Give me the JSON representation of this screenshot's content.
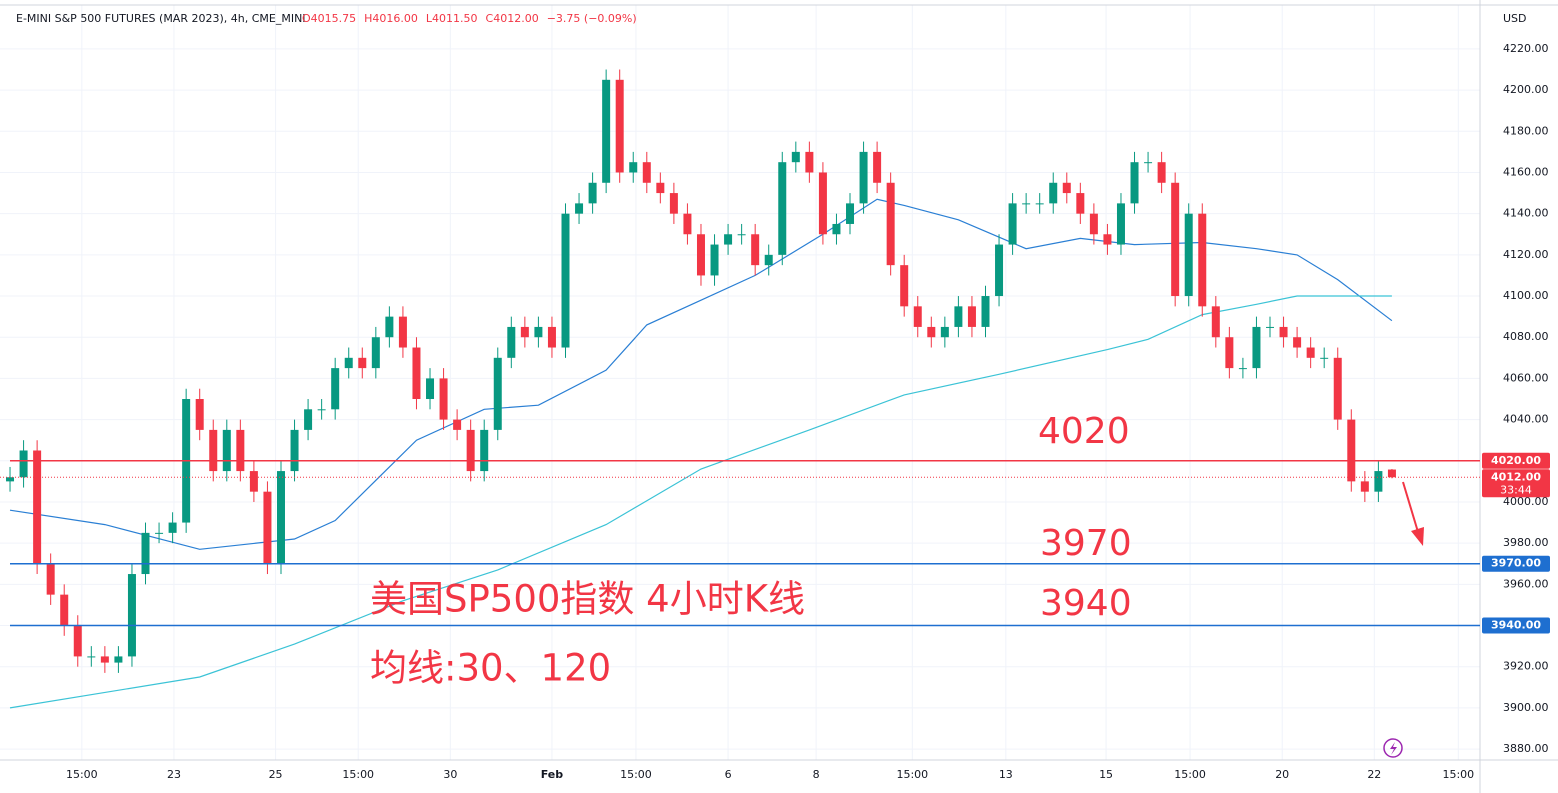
{
  "chart_data": {
    "type": "candlestick",
    "title": "E-MINI S&P 500 FUTURES (MAR 2023), 4h, CME_MINI",
    "ohlc_header": [
      "O4015.75",
      "H4016.00",
      "L4011.50",
      "C4012.00",
      "−3.75 (−0.09%)"
    ],
    "currency": "USD",
    "annotations": [
      "4020",
      "3970",
      "3940",
      "美国SP500指数 4小时K线",
      "均线:30、120"
    ],
    "countdown": "33:44",
    "up_color": "#089981",
    "down_color": "#f23645",
    "open": [
      4010,
      4012,
      4025,
      3970,
      3955,
      3940,
      3925,
      3925,
      3922,
      3925,
      3965,
      3985,
      3985,
      3990,
      4050,
      4035,
      4015,
      4035,
      4015,
      4005,
      3970,
      4015,
      4035,
      4045,
      4045,
      4065,
      4070,
      4065,
      4080,
      4090,
      4075,
      4050,
      4060,
      4040,
      4035,
      4015,
      4035,
      4070,
      4085,
      4080,
      4085,
      4075,
      4140,
      4145,
      4155,
      4205,
      4160,
      4165,
      4155,
      4150,
      4140,
      4130,
      4110,
      4125,
      4130,
      4130,
      4115,
      4120,
      4165,
      4170,
      4160,
      4130,
      4135,
      4145,
      4170,
      4155,
      4115,
      4095,
      4085,
      4080,
      4085,
      4095,
      4085,
      4100,
      4125,
      4145,
      4145,
      4145,
      4155,
      4150,
      4140,
      4130,
      4125,
      4145,
      4165,
      4165,
      4155,
      4100,
      4140,
      4095,
      4080,
      4065,
      4065,
      4085,
      4085,
      4080,
      4075,
      4070,
      4070,
      4040,
      4010,
      4005,
      4015.75
    ],
    "high": [
      4017,
      4030,
      4030,
      3975,
      3960,
      3945,
      3930,
      3930,
      3930,
      3970,
      3990,
      3990,
      3995,
      4055,
      4055,
      4040,
      4040,
      4040,
      4020,
      4010,
      4020,
      4040,
      4050,
      4050,
      4070,
      4075,
      4075,
      4085,
      4095,
      4095,
      4080,
      4065,
      4065,
      4045,
      4040,
      4040,
      4075,
      4090,
      4090,
      4090,
      4090,
      4145,
      4150,
      4160,
      4210,
      4210,
      4170,
      4170,
      4160,
      4155,
      4145,
      4135,
      4130,
      4135,
      4135,
      4135,
      4125,
      4170,
      4175,
      4175,
      4165,
      4140,
      4150,
      4175,
      4175,
      4160,
      4120,
      4100,
      4090,
      4090,
      4100,
      4100,
      4105,
      4130,
      4150,
      4150,
      4150,
      4160,
      4160,
      4155,
      4145,
      4135,
      4150,
      4170,
      4170,
      4170,
      4160,
      4145,
      4145,
      4100,
      4085,
      4070,
      4090,
      4090,
      4090,
      4085,
      4080,
      4075,
      4075,
      4045,
      4015,
      4020,
      4016
    ],
    "low": [
      4005,
      4007,
      3965,
      3950,
      3935,
      3920,
      3920,
      3917,
      3917,
      3920,
      3960,
      3980,
      3980,
      3985,
      4030,
      4010,
      4010,
      4010,
      4000,
      3965,
      3965,
      4010,
      4030,
      4040,
      4040,
      4060,
      4060,
      4060,
      4075,
      4070,
      4045,
      4045,
      4035,
      4030,
      4010,
      4010,
      4030,
      4065,
      4075,
      4075,
      4070,
      4070,
      4135,
      4140,
      4150,
      4155,
      4155,
      4150,
      4145,
      4135,
      4125,
      4105,
      4105,
      4120,
      4125,
      4110,
      4110,
      4115,
      4160,
      4155,
      4125,
      4125,
      4130,
      4140,
      4150,
      4110,
      4090,
      4080,
      4075,
      4075,
      4080,
      4080,
      4080,
      4095,
      4120,
      4140,
      4140,
      4140,
      4145,
      4135,
      4125,
      4120,
      4120,
      4140,
      4160,
      4150,
      4095,
      4095,
      4090,
      4075,
      4060,
      4060,
      4060,
      4080,
      4075,
      4070,
      4065,
      4065,
      4035,
      4005,
      4000,
      4000,
      4011.5
    ],
    "close": [
      4012,
      4025,
      3970,
      3955,
      3940,
      3925,
      3925,
      3922,
      3925,
      3965,
      3985,
      3985,
      3990,
      4050,
      4035,
      4015,
      4035,
      4015,
      4005,
      3970,
      4015,
      4035,
      4045,
      4045,
      4065,
      4070,
      4065,
      4080,
      4090,
      4075,
      4050,
      4060,
      4040,
      4035,
      4015,
      4035,
      4070,
      4085,
      4080,
      4085,
      4075,
      4140,
      4145,
      4155,
      4205,
      4160,
      4165,
      4155,
      4150,
      4140,
      4130,
      4110,
      4125,
      4130,
      4130,
      4115,
      4120,
      4165,
      4170,
      4160,
      4130,
      4135,
      4145,
      4170,
      4155,
      4115,
      4095,
      4085,
      4080,
      4085,
      4095,
      4085,
      4100,
      4125,
      4145,
      4145,
      4145,
      4155,
      4150,
      4140,
      4130,
      4125,
      4145,
      4165,
      4165,
      4155,
      4100,
      4140,
      4095,
      4080,
      4065,
      4065,
      4085,
      4085,
      4080,
      4075,
      4070,
      4070,
      4040,
      4010,
      4005,
      4015,
      4012
    ],
    "series": [
      {
        "color": "#2a7fd4",
        "x": [
          1,
          8,
          15,
          22,
          25,
          31,
          36,
          40,
          45,
          48,
          52,
          56,
          61,
          65,
          67,
          71,
          76,
          80,
          84,
          89,
          93,
          96,
          99,
          103
        ],
        "values": [
          3996,
          3989,
          3977,
          3982,
          3991,
          4030,
          4045,
          4047,
          4064,
          4086,
          4098,
          4110,
          4130,
          4147,
          4144,
          4137,
          4123,
          4128,
          4125,
          4126,
          4123,
          4120,
          4108,
          4088
        ]
      },
      {
        "color": "#3bc3d6",
        "x": [
          1,
          15,
          22,
          30,
          37,
          45,
          52,
          60,
          67,
          74,
          82,
          85,
          89,
          93,
          96,
          103
        ],
        "values": [
          3900,
          3915,
          3931,
          3952,
          3967,
          3989,
          4016,
          4035,
          4052,
          4062,
          4074,
          4079,
          4091,
          4096,
          4100,
          4100
        ]
      }
    ],
    "hlines": [
      {
        "value": 4020,
        "label": "4020.00",
        "color": "#f23645"
      },
      {
        "value": 3970,
        "label": "3970.00",
        "color": "#1e6fd0"
      },
      {
        "value": 3940,
        "label": "3940.00",
        "color": "#1e6fd0"
      }
    ],
    "last_price": {
      "value": 4012,
      "label": "4012.00"
    },
    "xlim": [
      0.26,
      109.5
    ],
    "xticks": [
      {
        "value": 6.3,
        "label": "15:00"
      },
      {
        "value": 13.1,
        "label": "23"
      },
      {
        "value": 20.6,
        "label": "25"
      },
      {
        "value": 26.7,
        "label": "15:00"
      },
      {
        "value": 33.5,
        "label": "30"
      },
      {
        "value": 41,
        "label": "Feb"
      },
      {
        "value": 47.2,
        "label": "15:00"
      },
      {
        "value": 54,
        "label": "6"
      },
      {
        "value": 60.5,
        "label": "8"
      },
      {
        "value": 67.6,
        "label": "15:00"
      },
      {
        "value": 74.5,
        "label": "13"
      },
      {
        "value": 81.9,
        "label": "15"
      },
      {
        "value": 88.1,
        "label": "15:00"
      },
      {
        "value": 94.9,
        "label": "20"
      },
      {
        "value": 101.7,
        "label": "22"
      },
      {
        "value": 107.9,
        "label": "15:00"
      }
    ],
    "ylim": [
      3874.7,
      4238.9
    ],
    "yticks": [
      {
        "value": 3880,
        "label": "3880.00"
      },
      {
        "value": 3900,
        "label": "3900.00"
      },
      {
        "value": 3920,
        "label": "3920.00"
      },
      {
        "value": 3940,
        "label": "3940.00"
      },
      {
        "value": 3960,
        "label": "3960.00"
      },
      {
        "value": 3980,
        "label": "3980.00"
      },
      {
        "value": 4000,
        "label": "4000.00"
      },
      {
        "value": 4020,
        "label": "4020.00"
      },
      {
        "value": 4040,
        "label": "4040.00"
      },
      {
        "value": 4060,
        "label": "4060.00"
      },
      {
        "value": 4080,
        "label": "4080.00"
      },
      {
        "value": 4100,
        "label": "4100.00"
      },
      {
        "value": 4120,
        "label": "4120.00"
      },
      {
        "value": 4140,
        "label": "4140.00"
      },
      {
        "value": 4160,
        "label": "4160.00"
      },
      {
        "value": 4180,
        "label": "4180.00"
      },
      {
        "value": 4200,
        "label": "4200.00"
      },
      {
        "value": 4220,
        "label": "4220.00"
      }
    ],
    "grid": true
  }
}
